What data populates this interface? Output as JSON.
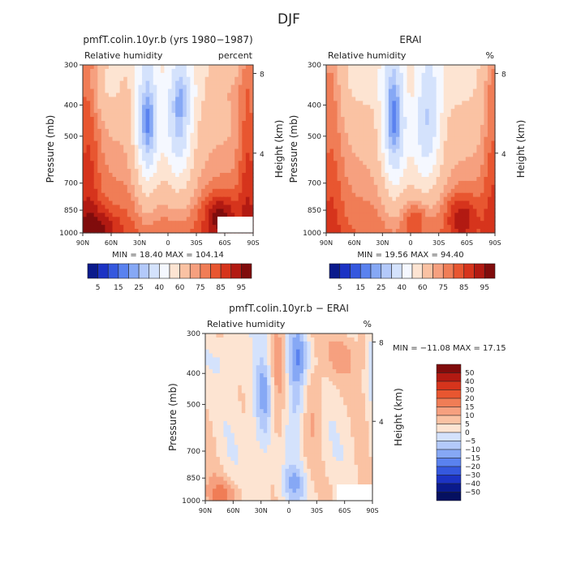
{
  "title": "DJF",
  "chart_data": [
    {
      "type": "heatmap",
      "id": "model",
      "title": "pmfT.colin.10yr.b (yrs 1980−1987)",
      "subtitle_left": "Relative humidity",
      "subtitle_right": "percent",
      "xlabel": "",
      "ylabel": "Pressure (mb)",
      "ylabel_right": "Height (km)",
      "x_ticks": [
        "90N",
        "60N",
        "30N",
        "0",
        "30S",
        "60S",
        "90S"
      ],
      "y_ticks": [
        "300",
        "400",
        "500",
        "700",
        "850",
        "1000"
      ],
      "y_tick_values": [
        300,
        400,
        500,
        700,
        850,
        1000
      ],
      "height_ticks": [
        "8",
        "4"
      ],
      "height_tick_values_km": [
        8,
        4
      ],
      "ylim": [
        1000,
        300
      ],
      "xlim": [
        90,
        -90
      ],
      "min": 18.4,
      "max": 104.14,
      "stats_text": "MIN =   18.40   MAX = 104.14",
      "pattern": "model",
      "missing_region_note": "blank box near 60S–90S, 850–1000 mb"
    },
    {
      "type": "heatmap",
      "id": "erai",
      "title": "ERAI",
      "subtitle_left": "Relative humidity",
      "subtitle_right": "%",
      "xlabel": "",
      "ylabel": "Pressure (mb)",
      "ylabel_right": "Height (km)",
      "x_ticks": [
        "90N",
        "60N",
        "30N",
        "0",
        "30S",
        "60S",
        "90S"
      ],
      "y_ticks": [
        "300",
        "400",
        "500",
        "700",
        "850",
        "1000"
      ],
      "y_tick_values": [
        300,
        400,
        500,
        700,
        850,
        1000
      ],
      "height_ticks": [
        "8",
        "4"
      ],
      "height_tick_values_km": [
        8,
        4
      ],
      "ylim": [
        1000,
        300
      ],
      "xlim": [
        90,
        -90
      ],
      "min": 19.56,
      "max": 94.4,
      "stats_text": "MIN =   19.56   MAX =   94.40",
      "pattern": "erai"
    },
    {
      "type": "heatmap",
      "id": "diff",
      "title": "pmfT.colin.10yr.b − ERAI",
      "subtitle_left": "Relative humidity",
      "subtitle_right": "%",
      "xlabel": "",
      "ylabel": "Pressure (mb)",
      "ylabel_right": "Height (km)",
      "x_ticks": [
        "90N",
        "60N",
        "30N",
        "0",
        "30S",
        "60S",
        "90S"
      ],
      "y_ticks": [
        "300",
        "400",
        "500",
        "700",
        "850",
        "1000"
      ],
      "y_tick_values": [
        300,
        400,
        500,
        700,
        850,
        1000
      ],
      "height_ticks": [
        "8",
        "4"
      ],
      "height_tick_values_km": [
        8,
        4
      ],
      "ylim": [
        1000,
        300
      ],
      "xlim": [
        90,
        -90
      ],
      "min": -11.08,
      "max": 17.15,
      "stats_text": "MIN = −11.08   MAX =  17.15",
      "pattern": "diff"
    }
  ],
  "colorbars": {
    "relative_humidity": {
      "levels": [
        5,
        10,
        15,
        20,
        25,
        30,
        40,
        50,
        60,
        70,
        75,
        80,
        85,
        90,
        95
      ],
      "tick_labels": [
        "5",
        "15",
        "25",
        "40",
        "60",
        "75",
        "85",
        "95"
      ],
      "colors": [
        "#0a1a8c",
        "#1c33c4",
        "#3558de",
        "#5a82ef",
        "#86a8f5",
        "#b3c9fa",
        "#d4e2fc",
        "#f5f8ff",
        "#fde4d2",
        "#fac2a3",
        "#f6a07f",
        "#f07d56",
        "#e85630",
        "#d6341c",
        "#b21a12",
        "#800c0c"
      ]
    },
    "difference": {
      "tick_labels": [
        "50",
        "40",
        "30",
        "20",
        "15",
        "10",
        "5",
        "0",
        "−5",
        "−10",
        "−15",
        "−20",
        "−30",
        "−40",
        "−50"
      ],
      "colors": [
        "#800c0c",
        "#b21a12",
        "#d6341c",
        "#e85630",
        "#f07d56",
        "#f6a07f",
        "#fac2a3",
        "#fde4d2",
        "#d4e2fc",
        "#b3c9fa",
        "#86a8f5",
        "#5a82ef",
        "#3558de",
        "#1c33c4",
        "#0a1a8c",
        "#051060"
      ]
    }
  }
}
